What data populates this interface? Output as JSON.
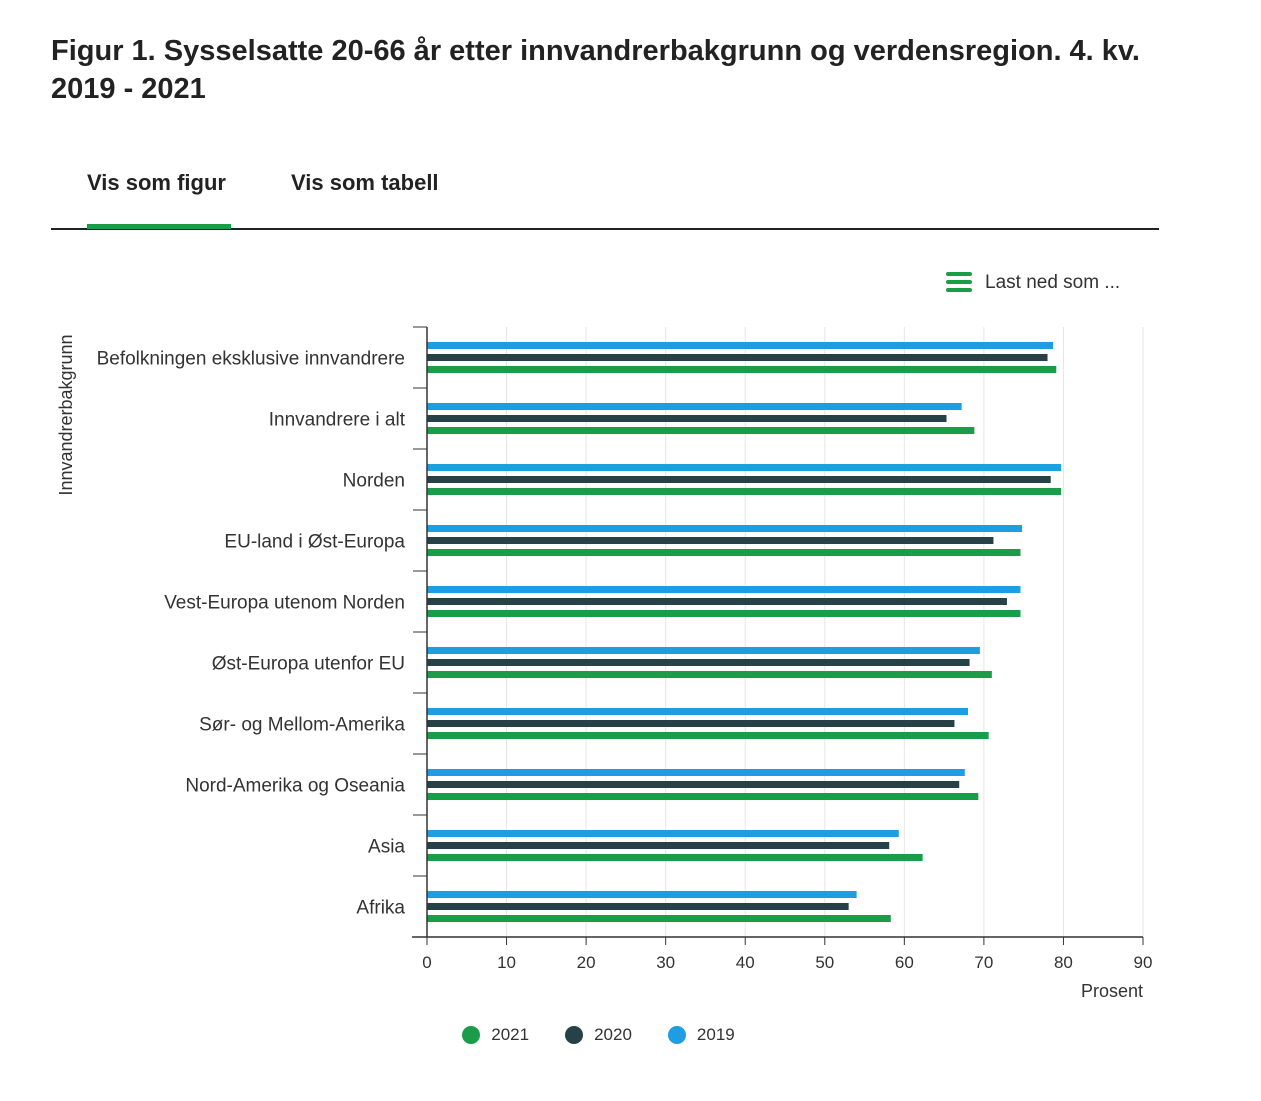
{
  "page": {
    "title": "Figur 1. Sysselsatte 20-66 år etter innvandrerbakgrunn og verdensregion. 4. kv. 2019 - 2021"
  },
  "tabs": [
    {
      "label": "Vis som figur",
      "active": true
    },
    {
      "label": "Vis som tabell",
      "active": false
    }
  ],
  "download": {
    "label": "Last ned som ...",
    "icon": "menu-icon"
  },
  "colors": {
    "2021": "#1a9d49",
    "2020": "#274247",
    "2019": "#1d9de2",
    "accent": "#1a9d49"
  },
  "chart_data": {
    "type": "bar",
    "orientation": "horizontal",
    "title": "",
    "ylabel": "Innvandrerbakgrunn",
    "xlabel": "Prosent",
    "xlim": [
      0,
      90
    ],
    "xticks": [
      0,
      10,
      20,
      30,
      40,
      50,
      60,
      70,
      80,
      90
    ],
    "grid": true,
    "legend_position": "bottom",
    "categories": [
      "Befolkningen eksklusive innvandrere",
      "Innvandrere i alt",
      "Norden",
      "EU-land i Øst-Europa",
      "Vest-Europa utenom Norden",
      "Øst-Europa utenfor EU",
      "Sør- og Mellom-Amerika",
      "Nord-Amerika og Oseania",
      "Asia",
      "Afrika"
    ],
    "series": [
      {
        "name": "2019",
        "values": [
          78.7,
          67.2,
          79.7,
          74.8,
          74.6,
          69.5,
          68.0,
          67.6,
          59.3,
          54.0
        ]
      },
      {
        "name": "2020",
        "values": [
          78.0,
          65.3,
          78.4,
          71.2,
          72.9,
          68.2,
          66.3,
          66.9,
          58.1,
          53.0
        ]
      },
      {
        "name": "2021",
        "values": [
          79.1,
          68.8,
          79.7,
          74.6,
          74.6,
          71.0,
          70.6,
          69.3,
          62.3,
          58.3
        ]
      }
    ],
    "legend_order": [
      "2021",
      "2020",
      "2019"
    ]
  }
}
